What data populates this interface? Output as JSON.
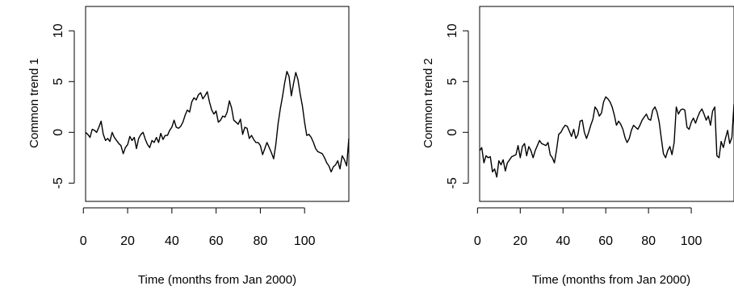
{
  "chart_data": [
    {
      "type": "line",
      "xlabel": "Time (months from Jan 2000)",
      "ylabel": "Common trend 1",
      "xlim": [
        1,
        120
      ],
      "ylim": [
        -6.8,
        12.4
      ],
      "xticks": [
        "0",
        "20",
        "40",
        "60",
        "80",
        "100"
      ],
      "yticks": [
        "-5",
        "0",
        "5",
        "10"
      ],
      "x_start": 1,
      "values": [
        0.0,
        -0.2,
        -0.5,
        0.3,
        0.2,
        0.0,
        0.5,
        1.1,
        -0.2,
        -0.8,
        -0.6,
        -0.9,
        0.0,
        -0.5,
        -0.8,
        -1.1,
        -1.3,
        -2.1,
        -1.5,
        -1.2,
        -0.4,
        -0.8,
        -0.5,
        -1.6,
        -0.6,
        -0.2,
        0.0,
        -0.7,
        -1.2,
        -1.5,
        -0.8,
        -1.0,
        -0.5,
        -1.0,
        -0.1,
        -0.7,
        -0.3,
        -0.3,
        0.2,
        0.5,
        1.2,
        0.5,
        0.4,
        0.6,
        1.0,
        1.7,
        2.2,
        2.0,
        3.0,
        3.4,
        3.2,
        3.7,
        3.9,
        3.3,
        3.6,
        4.0,
        3.0,
        2.2,
        1.8,
        2.1,
        1.0,
        1.2,
        1.6,
        1.5,
        2.0,
        3.1,
        2.4,
        1.2,
        1.0,
        0.8,
        1.3,
        -0.2,
        0.5,
        0.4,
        -0.6,
        -0.3,
        -0.7,
        -1.0,
        -1.0,
        -1.3,
        -2.2,
        -1.6,
        -1.0,
        -1.5,
        -2.0,
        -2.6,
        -1.2,
        0.8,
        2.3,
        3.5,
        4.9,
        6.0,
        5.5,
        3.6,
        4.8,
        5.9,
        5.2,
        3.8,
        2.6,
        1.0,
        -0.3,
        -0.2,
        -0.5,
        -1.0,
        -1.6,
        -1.9,
        -2.0,
        -2.1,
        -2.5,
        -3.0,
        -3.3,
        -3.9,
        -3.4,
        -3.2,
        -2.8,
        -3.6,
        -2.3,
        -2.7,
        -3.3,
        -0.6
      ]
    },
    {
      "type": "line",
      "xlabel": "Time (months from Jan 2000)",
      "ylabel": "Common trend 2",
      "xlim": [
        1,
        120
      ],
      "ylim": [
        -6.8,
        12.4
      ],
      "xticks": [
        "0",
        "20",
        "40",
        "60",
        "80",
        "100"
      ],
      "yticks": [
        "-5",
        "0",
        "5",
        "10"
      ],
      "x_start": 1,
      "values": [
        -1.8,
        -1.5,
        -3.0,
        -2.3,
        -2.5,
        -2.4,
        -3.9,
        -3.6,
        -4.4,
        -2.8,
        -3.2,
        -2.7,
        -3.8,
        -3.0,
        -2.7,
        -2.4,
        -2.3,
        -2.2,
        -1.3,
        -2.5,
        -1.4,
        -1.1,
        -2.3,
        -1.4,
        -1.8,
        -2.5,
        -1.8,
        -1.3,
        -0.8,
        -1.1,
        -1.2,
        -1.3,
        -1.0,
        -2.2,
        -2.5,
        -3.0,
        -1.7,
        -0.2,
        0.0,
        0.4,
        0.7,
        0.6,
        0.1,
        -0.4,
        0.3,
        -0.6,
        -0.2,
        1.1,
        1.2,
        0.0,
        -0.6,
        0.0,
        0.7,
        1.3,
        2.5,
        2.2,
        1.6,
        1.9,
        3.0,
        3.5,
        3.3,
        3.0,
        2.5,
        1.7,
        0.7,
        1.1,
        0.8,
        0.3,
        -0.5,
        -1.0,
        -0.6,
        0.2,
        0.7,
        0.5,
        0.3,
        0.7,
        1.2,
        1.5,
        1.8,
        1.3,
        1.2,
        2.2,
        2.5,
        2.0,
        1.0,
        -0.6,
        -2.1,
        -2.5,
        -1.8,
        -1.4,
        -2.2,
        -1.0,
        2.5,
        1.8,
        2.2,
        2.3,
        2.2,
        0.5,
        0.3,
        1.0,
        1.4,
        0.9,
        1.5,
        2.0,
        2.3,
        1.8,
        1.2,
        1.6,
        0.7,
        2.1,
        2.5,
        -2.3,
        -2.5,
        -0.9,
        -1.5,
        -0.6,
        0.2,
        -1.1,
        -0.5,
        2.8
      ]
    }
  ]
}
